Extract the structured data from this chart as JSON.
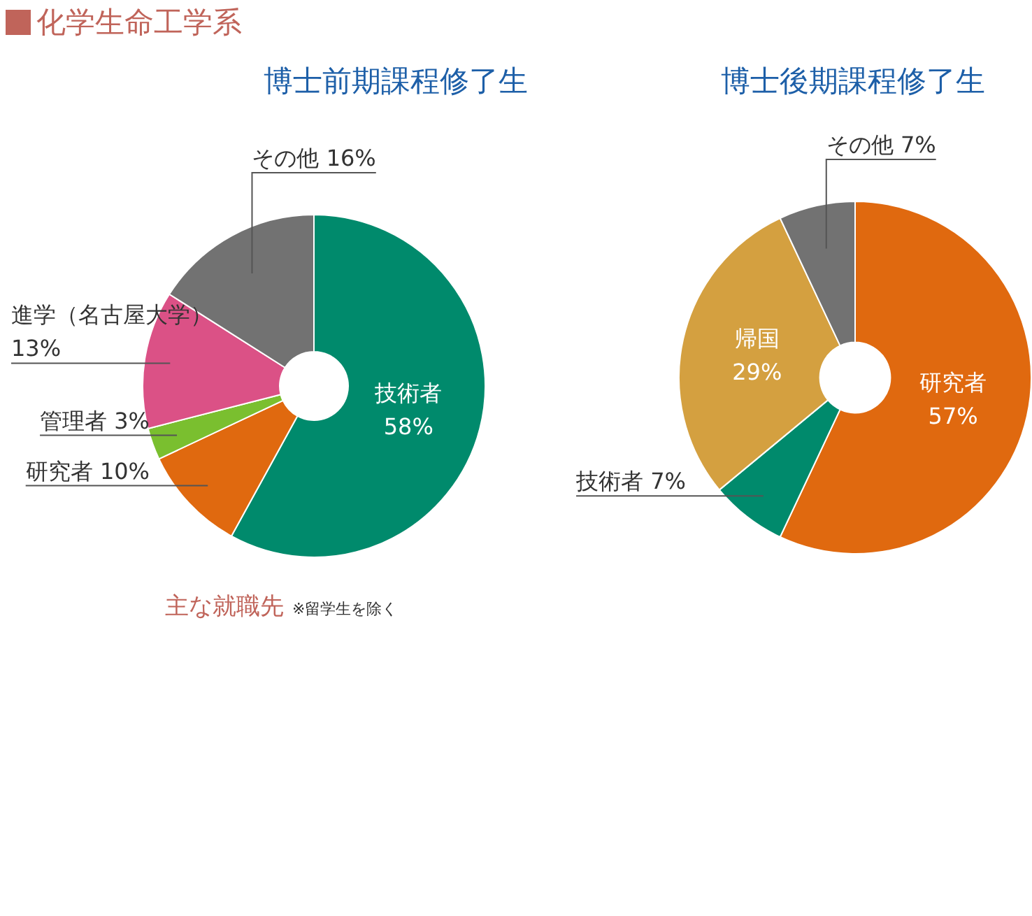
{
  "chart_data": [
    {
      "type": "donut",
      "title": "博士前期課程修了生",
      "categories": [
        "技術者",
        "研究者",
        "管理者",
        "進学（名古屋大学）",
        "その他"
      ],
      "values": [
        58,
        10,
        3,
        13,
        16
      ],
      "value_labels": [
        "58%",
        "10%",
        "3%",
        "13%",
        "16%"
      ],
      "colors": [
        "#008a6c",
        "#e0690f",
        "#7abf2f",
        "#db5186",
        "#727272"
      ],
      "legend": false,
      "annotations": [
        "化学生命工学系",
        "主な就職先",
        "※留学生を除く"
      ]
    },
    {
      "type": "donut",
      "title": "博士後期課程修了生",
      "categories": [
        "研究者",
        "技術者",
        "帰国",
        "その他"
      ],
      "values": [
        57,
        7,
        29,
        7
      ],
      "value_labels": [
        "57%",
        "7%",
        "29%",
        "7%"
      ],
      "colors": [
        "#e0690f",
        "#008a6c",
        "#d4a040",
        "#727272"
      ],
      "legend": false
    }
  ]
}
